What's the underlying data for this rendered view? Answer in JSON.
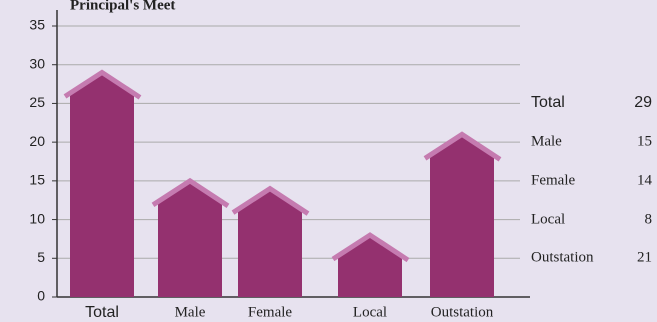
{
  "chart_data": {
    "type": "bar",
    "title": "Principal's Meet",
    "categories": [
      "Total",
      "Male",
      "Female",
      "Local",
      "Outstation"
    ],
    "values": [
      29,
      15,
      14,
      8,
      21
    ],
    "color": "#94316f",
    "roof_color": "#c57bb0",
    "ylim": [
      0,
      35
    ],
    "yticks": [
      0,
      5,
      10,
      15,
      20,
      25,
      30,
      35
    ],
    "grid": true
  }
}
